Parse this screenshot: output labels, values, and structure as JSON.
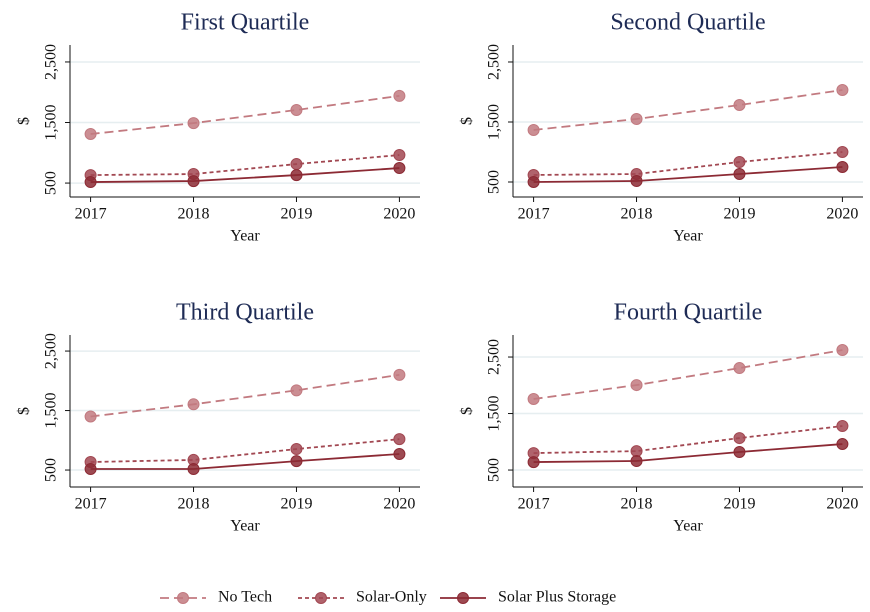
{
  "chart_data": [
    {
      "type": "line",
      "title": "First Quartile",
      "xlabel": "Year",
      "ylabel": "$",
      "x": [
        2017,
        2018,
        2019,
        2020
      ],
      "xlim": [
        2016.8,
        2020.2
      ],
      "xticks": [
        2017,
        2018,
        2019,
        2020
      ],
      "ylim": [
        270,
        2780
      ],
      "yticks": [
        500,
        {
          "value": 1500,
          "label": "1,500"
        },
        {
          "value": 2500,
          "label": "2,500"
        }
      ],
      "grid": true,
      "series": [
        {
          "name": "No Tech",
          "color": "#c27a80",
          "line_style": "long-dash",
          "values": [
            1310,
            1490,
            1707,
            1940
          ]
        },
        {
          "name": "Solar-Only",
          "color": "#a24852",
          "line_style": "short-dash",
          "values": [
            632,
            649,
            814,
            963
          ]
        },
        {
          "name": "Solar Plus Storage",
          "color": "#8c2a34",
          "line_style": "solid",
          "values": [
            517,
            533,
            632,
            748
          ]
        }
      ]
    },
    {
      "type": "line",
      "title": "Second Quartile",
      "xlabel": "Year",
      "ylabel": "$",
      "x": [
        2017,
        2018,
        2019,
        2020
      ],
      "xlim": [
        2016.8,
        2020.2
      ],
      "xticks": [
        2017,
        2018,
        2019,
        2020
      ],
      "ylim": [
        250,
        2783
      ],
      "yticks": [
        500,
        {
          "value": 1500,
          "label": "1,500"
        },
        {
          "value": 2500,
          "label": "2,500"
        }
      ],
      "grid": true,
      "series": [
        {
          "name": "No Tech",
          "color": "#c27a80",
          "line_style": "long-dash",
          "values": [
            1367,
            1550,
            1783,
            2033
          ]
        },
        {
          "name": "Solar-Only",
          "color": "#a24852",
          "line_style": "short-dash",
          "values": [
            617,
            633,
            833,
            1000
          ]
        },
        {
          "name": "Solar Plus Storage",
          "color": "#8c2a34",
          "line_style": "solid",
          "values": [
            500,
            517,
            633,
            750
          ]
        }
      ]
    },
    {
      "type": "line",
      "title": "Third Quartile",
      "xlabel": "Year",
      "ylabel": "$",
      "x": [
        2017,
        2018,
        2019,
        2020
      ],
      "xlim": [
        2016.8,
        2020.2
      ],
      "xticks": [
        2017,
        2018,
        2019,
        2020
      ],
      "ylim": [
        215,
        2770
      ],
      "yticks": [
        500,
        {
          "value": 1500,
          "label": "1,500"
        },
        {
          "value": 2500,
          "label": "2,500"
        }
      ],
      "grid": true,
      "series": [
        {
          "name": "No Tech",
          "color": "#c27a80",
          "line_style": "long-dash",
          "values": [
            1400,
            1605,
            1840,
            2100
          ]
        },
        {
          "name": "Solar-Only",
          "color": "#a24852",
          "line_style": "short-dash",
          "values": [
            635,
            670,
            853,
            1020
          ]
        },
        {
          "name": "Solar Plus Storage",
          "color": "#8c2a34",
          "line_style": "solid",
          "values": [
            517,
            517,
            650,
            770
          ]
        }
      ]
    },
    {
      "type": "line",
      "title": "Fourth Quartile",
      "xlabel": "Year",
      "ylabel": "$",
      "x": [
        2017,
        2018,
        2019,
        2020
      ],
      "xlim": [
        2016.8,
        2020.2
      ],
      "xticks": [
        2017,
        2018,
        2019,
        2020
      ],
      "ylim": [
        200,
        2890
      ],
      "yticks": [
        500,
        {
          "value": 1500,
          "label": "1,500"
        },
        {
          "value": 2500,
          "label": "2,500"
        }
      ],
      "grid": true,
      "series": [
        {
          "name": "No Tech",
          "color": "#c27a80",
          "line_style": "long-dash",
          "values": [
            1757,
            2004,
            2305,
            2624
          ]
        },
        {
          "name": "Solar-Only",
          "color": "#a24852",
          "line_style": "short-dash",
          "values": [
            800,
            835,
            1066,
            1279
          ]
        },
        {
          "name": "Solar Plus Storage",
          "color": "#8c2a34",
          "line_style": "solid",
          "values": [
            641,
            660,
            819,
            960
          ]
        }
      ]
    }
  ]
}
